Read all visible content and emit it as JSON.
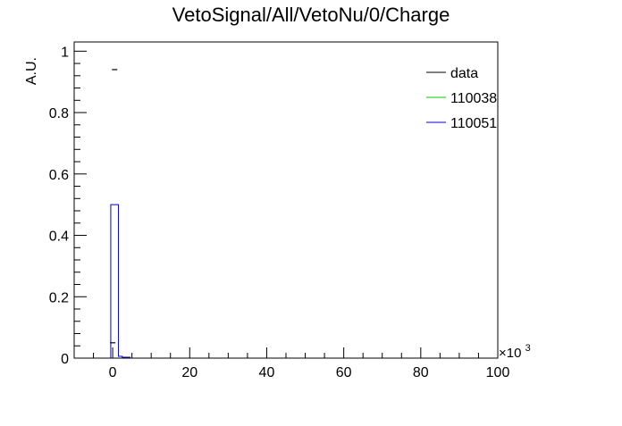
{
  "chart_data": {
    "type": "histogram",
    "title": "VetoSignal/All/VetoNu/0/Charge",
    "ylabel": "A.U.",
    "xlabel": "",
    "x_scale_label": "×10",
    "x_scale_exponent": "3",
    "xlim": [
      -10,
      100
    ],
    "ylim": [
      0,
      1.03
    ],
    "x_ticks": [
      {
        "value": 0,
        "label": "0"
      },
      {
        "value": 20,
        "label": "20"
      },
      {
        "value": 40,
        "label": "40"
      },
      {
        "value": 60,
        "label": "60"
      },
      {
        "value": 80,
        "label": "80"
      },
      {
        "value": 100,
        "label": "100"
      }
    ],
    "y_ticks": [
      {
        "value": 0,
        "label": "0"
      },
      {
        "value": 0.2,
        "label": "0.2"
      },
      {
        "value": 0.4,
        "label": "0.4"
      },
      {
        "value": 0.6,
        "label": "0.6"
      },
      {
        "value": 0.8,
        "label": "0.8"
      },
      {
        "value": 1,
        "label": "1"
      }
    ],
    "legend_position": "top-right",
    "series": [
      {
        "name": "data",
        "style": "markers",
        "color": "#000000",
        "points": [
          {
            "x": 0.5,
            "y": 0.94
          },
          {
            "x": 0.0,
            "y": 0.05
          }
        ]
      },
      {
        "name": "110038",
        "style": "histogram",
        "color": "#00cc00",
        "bins": []
      },
      {
        "name": "110051",
        "style": "histogram",
        "color": "#0000cc",
        "bins": [
          {
            "x0": -0.5,
            "x1": 1.5,
            "y": 0.5
          },
          {
            "x0": 1.5,
            "x1": 2.5,
            "y": 0.006
          },
          {
            "x0": 2.5,
            "x1": 4.5,
            "y": 0.003
          }
        ]
      }
    ]
  }
}
